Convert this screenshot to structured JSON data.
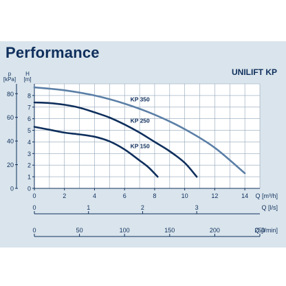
{
  "heading": "Performance",
  "chart_data": {
    "type": "line",
    "title": "UNILIFT KP",
    "left_axes": {
      "kpa": {
        "label": "p [kPa]",
        "label_top": "p",
        "label_unit": "[kPa]",
        "ticks": [
          0,
          20,
          40,
          60,
          80
        ]
      },
      "head": {
        "label": "H [m]",
        "label_top": "H",
        "label_unit": "[m]",
        "range": [
          0,
          9
        ],
        "ticks": [
          0,
          1,
          2,
          3,
          4,
          5,
          6,
          7,
          8
        ]
      }
    },
    "x_axis": {
      "label": "Q [m³/h]",
      "range": [
        0,
        15
      ],
      "ticks": [
        0,
        2,
        4,
        6,
        8,
        10,
        12,
        14
      ]
    },
    "scale_ls": {
      "label": "Q [l/s]",
      "ticks": [
        0,
        1,
        2,
        3
      ]
    },
    "scale_lmin": {
      "label": "Q [l/min]",
      "ticks": [
        0,
        50,
        100,
        150,
        200,
        250
      ]
    },
    "grid": true,
    "series": [
      {
        "name": "KP 350",
        "color": "#5b7fa6",
        "x": [
          0,
          2,
          4,
          6,
          8,
          10,
          12,
          14
        ],
        "y": [
          8.7,
          8.45,
          8.0,
          7.3,
          6.35,
          5.1,
          3.5,
          1.3
        ]
      },
      {
        "name": "KP 250",
        "color": "#0f2f5c",
        "x": [
          0,
          1,
          2,
          3,
          4,
          5,
          6,
          7,
          8,
          9,
          10,
          10.8
        ],
        "y": [
          7.4,
          7.35,
          7.2,
          6.95,
          6.55,
          6.1,
          5.5,
          4.8,
          4.0,
          3.2,
          2.2,
          1.0
        ]
      },
      {
        "name": "KP 150",
        "color": "#0f2f5c",
        "x": [
          0,
          1,
          2,
          3,
          4,
          5,
          6,
          7,
          7.6,
          8.2
        ],
        "y": [
          5.3,
          5.05,
          4.8,
          4.65,
          4.45,
          4.05,
          3.35,
          2.4,
          1.8,
          1.0
        ]
      }
    ]
  }
}
